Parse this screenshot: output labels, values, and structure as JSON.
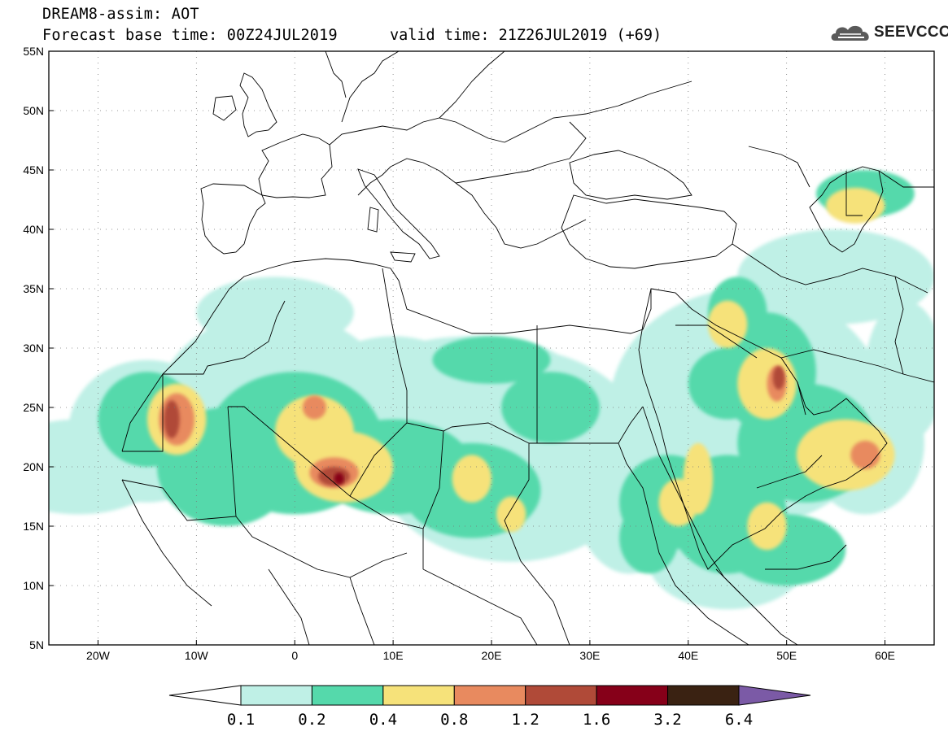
{
  "header": {
    "title": "DREAM8-assim: AOT",
    "base_time": "Forecast base time: 00Z24JUL2019",
    "valid_time": "valid time: 21Z26JUL2019 (+69)"
  },
  "logo": {
    "text": "SEEVCCC",
    "icon": "cloud-icon"
  },
  "map": {
    "lon_range": [
      -25,
      65
    ],
    "lat_range": [
      5,
      55
    ],
    "lat_ticks": [
      {
        "v": 55,
        "label": "55N"
      },
      {
        "v": 50,
        "label": "50N"
      },
      {
        "v": 45,
        "label": "45N"
      },
      {
        "v": 40,
        "label": "40N"
      },
      {
        "v": 35,
        "label": "35N"
      },
      {
        "v": 30,
        "label": "30N"
      },
      {
        "v": 25,
        "label": "25N"
      },
      {
        "v": 20,
        "label": "20N"
      },
      {
        "v": 15,
        "label": "15N"
      },
      {
        "v": 10,
        "label": "10N"
      },
      {
        "v": 5,
        "label": "5N"
      }
    ],
    "lon_ticks": [
      {
        "v": -20,
        "label": "20W"
      },
      {
        "v": -10,
        "label": "10W"
      },
      {
        "v": 0,
        "label": "0"
      },
      {
        "v": 10,
        "label": "10E"
      },
      {
        "v": 20,
        "label": "20E"
      },
      {
        "v": 30,
        "label": "30E"
      },
      {
        "v": 40,
        "label": "40E"
      },
      {
        "v": 50,
        "label": "50E"
      },
      {
        "v": 60,
        "label": "60E"
      }
    ],
    "grid": "dotted",
    "fields": [
      {
        "level": "0.1-0.2",
        "color": "#bff0e6",
        "blobs": [
          [
            -22,
            20,
            9,
            4
          ],
          [
            -15,
            23,
            8,
            6
          ],
          [
            -2,
            25,
            12,
            8
          ],
          [
            10,
            24,
            10,
            7
          ],
          [
            22,
            21,
            14,
            9
          ],
          [
            34,
            19,
            6,
            8
          ],
          [
            46,
            25,
            14,
            10
          ],
          [
            44,
            12,
            8,
            4
          ],
          [
            58,
            22,
            6,
            6
          ],
          [
            -2,
            33,
            8,
            3
          ],
          [
            18,
            28,
            10,
            3
          ],
          [
            62,
            28,
            4,
            6
          ],
          [
            55,
            36,
            10,
            4
          ]
        ]
      },
      {
        "level": "0.2-0.4",
        "color": "#55d9ab",
        "blobs": [
          [
            -15,
            24,
            5,
            4
          ],
          [
            -7,
            20,
            7,
            5
          ],
          [
            0,
            22,
            9,
            6
          ],
          [
            10,
            20,
            8,
            4
          ],
          [
            18,
            18,
            7,
            4
          ],
          [
            26,
            25,
            5,
            3
          ],
          [
            20,
            29,
            6,
            2
          ],
          [
            38,
            17,
            5,
            4
          ],
          [
            44,
            16,
            6,
            5
          ],
          [
            52,
            22,
            7,
            5
          ],
          [
            48,
            28,
            5,
            5
          ],
          [
            45,
            33,
            3,
            3
          ],
          [
            50,
            13,
            6,
            3
          ],
          [
            58,
            43,
            5,
            2
          ],
          [
            44,
            27,
            4,
            3
          ],
          [
            36,
            14,
            3,
            3
          ]
        ]
      },
      {
        "level": "0.4-0.8",
        "color": "#f6e27a",
        "blobs": [
          [
            -12,
            24,
            3,
            3
          ],
          [
            2,
            23,
            4,
            3
          ],
          [
            5,
            20,
            5,
            3
          ],
          [
            18,
            19,
            2,
            2
          ],
          [
            22,
            16,
            1.5,
            1.5
          ],
          [
            44,
            32,
            2,
            2
          ],
          [
            48,
            27,
            3,
            3
          ],
          [
            56,
            21,
            5,
            3
          ],
          [
            39,
            17,
            2,
            2
          ],
          [
            41,
            19,
            1.5,
            3
          ],
          [
            48,
            15,
            2,
            2
          ],
          [
            57,
            42,
            3,
            1.5
          ]
        ]
      },
      {
        "level": "0.8-1.2",
        "color": "#e88a5f",
        "blobs": [
          [
            -12,
            24,
            1.8,
            2.2
          ],
          [
            2,
            25,
            1.2,
            1
          ],
          [
            4,
            19.5,
            2.5,
            1.3
          ],
          [
            58,
            21,
            1.5,
            1.2
          ],
          [
            49,
            27,
            1,
            1.5
          ]
        ]
      },
      {
        "level": "1.2-1.6",
        "color": "#b04a38",
        "blobs": [
          [
            -12.5,
            24,
            0.8,
            1.6
          ],
          [
            4,
            19.2,
            1.6,
            0.8
          ],
          [
            49.2,
            27.5,
            0.6,
            1
          ]
        ]
      },
      {
        "level": "1.6-3.2",
        "color": "#860019",
        "blobs": [
          [
            4.5,
            19,
            0.5,
            0.5
          ]
        ]
      }
    ]
  },
  "colorbar": {
    "colors": [
      "#ffffff",
      "#bff0e6",
      "#55d9ab",
      "#f6e27a",
      "#e88a5f",
      "#b04a38",
      "#860019",
      "#3a2212",
      "#7b5aa6"
    ],
    "labels": [
      "0.1",
      "0.2",
      "0.4",
      "0.8",
      "1.2",
      "1.6",
      "3.2",
      "6.4"
    ]
  }
}
